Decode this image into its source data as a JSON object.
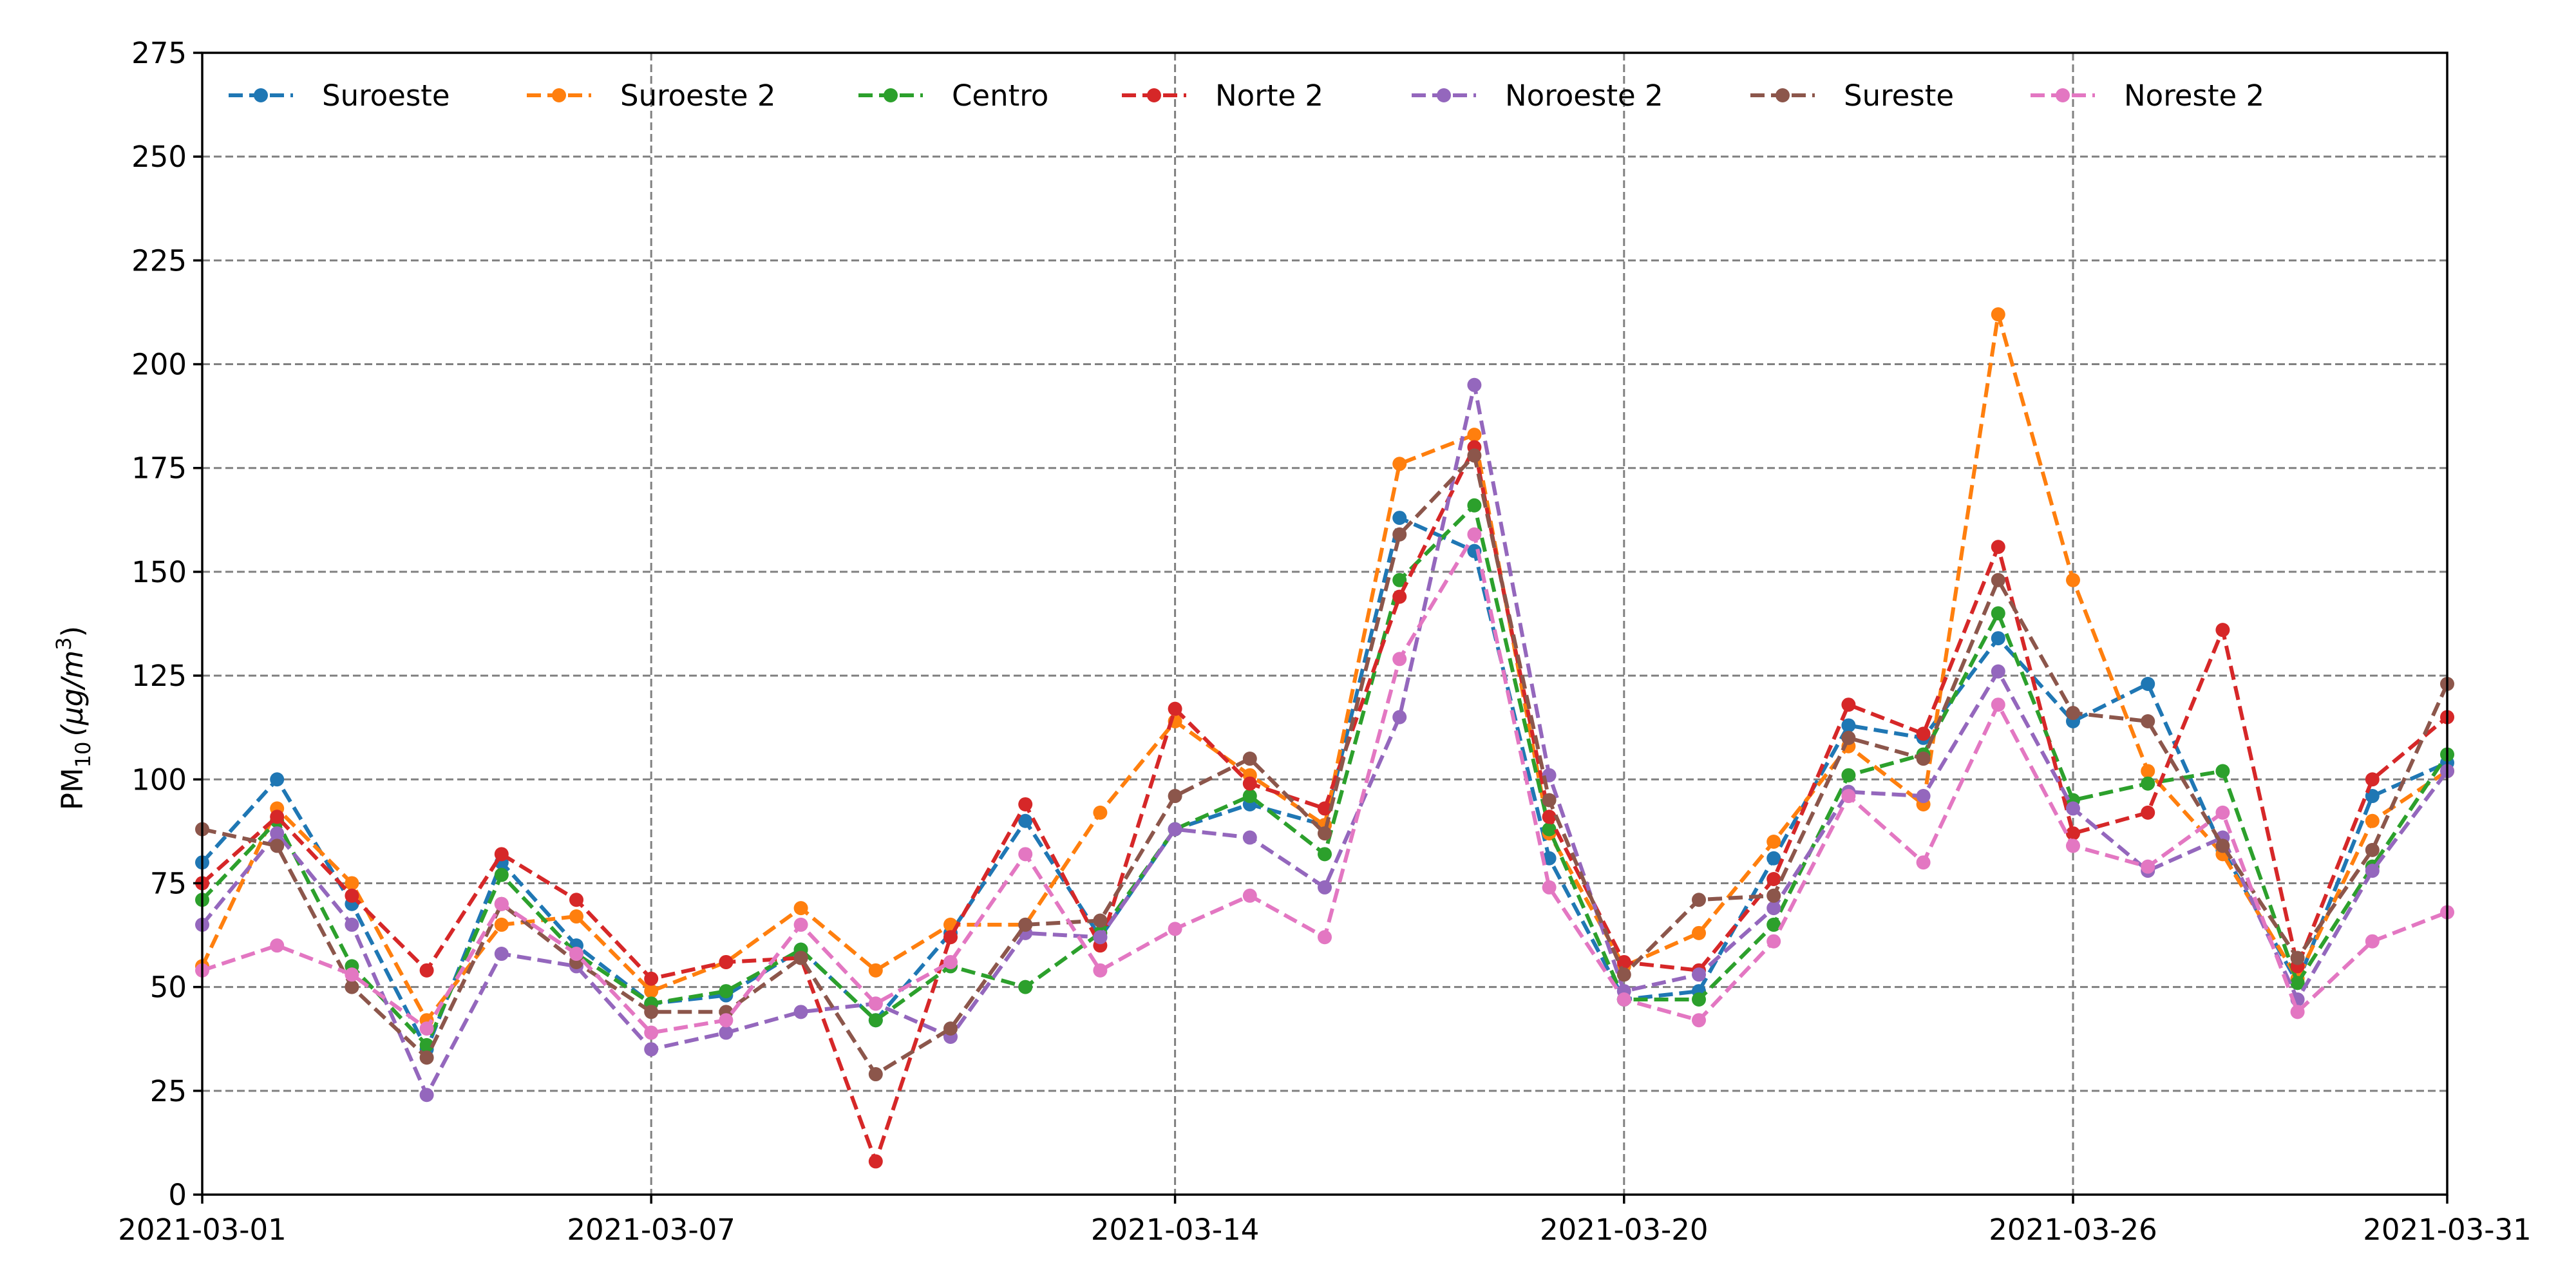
{
  "chart_data": {
    "type": "line",
    "title": "",
    "xlabel": "",
    "ylabel": "PM",
    "ylabel_sub": "10",
    "ylabel_unit": "(μg/m",
    "ylabel_sup": "3",
    "ylabel_close": ")",
    "ylim": [
      0,
      275
    ],
    "yticks": [
      "0",
      "25",
      "50",
      "75",
      "100",
      "125",
      "150",
      "175",
      "200",
      "225",
      "250",
      "275"
    ],
    "xlim": [
      "2021-03-01",
      "2021-03-31"
    ],
    "xticks": [
      "2021-03-01",
      "2021-03-07",
      "2021-03-14",
      "2021-03-20",
      "2021-03-26",
      "2021-03-31"
    ],
    "grid": true,
    "legend_position": "top",
    "x": [
      "2021-03-01",
      "2021-03-02",
      "2021-03-03",
      "2021-03-04",
      "2021-03-05",
      "2021-03-06",
      "2021-03-07",
      "2021-03-08",
      "2021-03-09",
      "2021-03-10",
      "2021-03-11",
      "2021-03-12",
      "2021-03-13",
      "2021-03-14",
      "2021-03-15",
      "2021-03-16",
      "2021-03-17",
      "2021-03-18",
      "2021-03-19",
      "2021-03-20",
      "2021-03-21",
      "2021-03-22",
      "2021-03-23",
      "2021-03-24",
      "2021-03-25",
      "2021-03-26",
      "2021-03-27",
      "2021-03-28",
      "2021-03-29",
      "2021-03-30",
      "2021-03-31"
    ],
    "series": [
      {
        "name": "Suroeste",
        "color": "#1f77b4",
        "values": [
          80,
          100,
          70,
          35,
          80,
          60,
          46,
          48,
          59,
          42,
          63,
          90,
          62,
          88,
          94,
          89,
          163,
          155,
          81,
          47,
          49,
          81,
          113,
          110,
          134,
          114,
          123,
          83,
          51,
          96,
          104
        ]
      },
      {
        "name": "Suroeste 2",
        "color": "#ff7f0e",
        "values": [
          55,
          93,
          75,
          42,
          65,
          67,
          49,
          56,
          69,
          54,
          65,
          65,
          92,
          114,
          101,
          89,
          176,
          183,
          87,
          55,
          63,
          85,
          108,
          94,
          212,
          148,
          102,
          82,
          52,
          90,
          102
        ]
      },
      {
        "name": "Centro",
        "color": "#2ca02c",
        "values": [
          71,
          90,
          55,
          36,
          77,
          58,
          46,
          49,
          59,
          42,
          55,
          50,
          63,
          88,
          96,
          82,
          148,
          166,
          88,
          47,
          47,
          65,
          101,
          106,
          140,
          95,
          99,
          102,
          51,
          79,
          106
        ]
      },
      {
        "name": "Norte 2",
        "color": "#d62728",
        "values": [
          75,
          91,
          72,
          54,
          82,
          71,
          52,
          56,
          57,
          8,
          62,
          94,
          60,
          117,
          99,
          93,
          144,
          180,
          91,
          56,
          54,
          76,
          118,
          111,
          156,
          87,
          92,
          136,
          55,
          100,
          115
        ]
      },
      {
        "name": "Noroeste 2",
        "color": "#9467bd",
        "values": [
          65,
          87,
          65,
          24,
          58,
          55,
          35,
          39,
          44,
          46,
          38,
          63,
          62,
          88,
          86,
          74,
          115,
          195,
          101,
          49,
          53,
          69,
          97,
          96,
          126,
          93,
          78,
          86,
          47,
          78,
          102
        ]
      },
      {
        "name": "Sureste",
        "color": "#8c564b",
        "values": [
          88,
          84,
          50,
          33,
          70,
          56,
          44,
          44,
          57,
          29,
          40,
          65,
          66,
          96,
          105,
          87,
          159,
          178,
          95,
          53,
          71,
          72,
          110,
          105,
          148,
          116,
          114,
          84,
          57,
          83,
          123
        ]
      },
      {
        "name": "Noreste 2",
        "color": "#e377c2",
        "values": [
          54,
          60,
          53,
          40,
          70,
          58,
          39,
          42,
          65,
          46,
          56,
          82,
          54,
          64,
          72,
          62,
          129,
          159,
          74,
          47,
          42,
          61,
          96,
          80,
          118,
          84,
          79,
          92,
          44,
          61,
          68
        ]
      }
    ]
  }
}
